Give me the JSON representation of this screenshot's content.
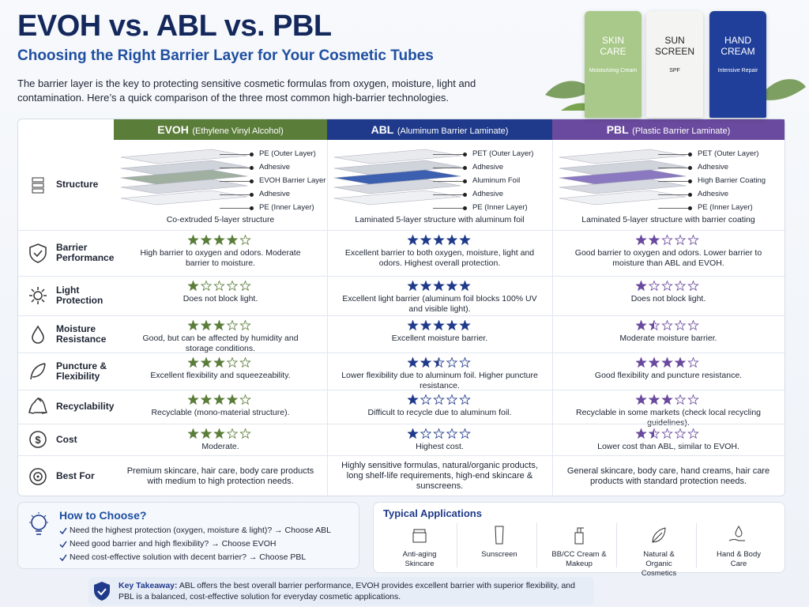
{
  "header": {
    "title": "EVOH vs. ABL vs. PBL",
    "subtitle": "Choosing the Right Barrier Layer for Your Cosmetic Tubes",
    "intro": "The barrier layer is the key to protecting sensitive cosmetic formulas from oxygen, moisture, light and contamination. Here’s a quick comparison of the three most common high-barrier technologies."
  },
  "products": [
    {
      "name": "SKIN CARE",
      "sub": "Moisturizing Cream",
      "color": "#a9c98a"
    },
    {
      "name": "SUN SCREEN",
      "sub": "SPF",
      "color": "#f4f4f2"
    },
    {
      "name": "HAND CREAM",
      "sub": "Intensive Repair",
      "color": "#1f3f9a"
    }
  ],
  "table": {
    "columns": [
      {
        "name": "EVOH",
        "full": "(Ethylene Vinyl Alcohol)",
        "color": "#5b7d3a"
      },
      {
        "name": "ABL",
        "full": "(Aluminum Barrier Laminate)",
        "color": "#1f3a8a"
      },
      {
        "name": "PBL",
        "full": "(Plastic Barrier Laminate)",
        "color": "#6a4a9e"
      }
    ],
    "structure": {
      "label": "Structure",
      "cells": [
        {
          "layers": [
            "PE (Outer Layer)",
            "Adhesive",
            "EVOH Barrier Layer",
            "Adhesive",
            "PE (Inner Layer)"
          ],
          "caption": "Co-extruded 5-layer structure"
        },
        {
          "layers": [
            "PET (Outer Layer)",
            "Adhesive",
            "Aluminum Foil",
            "Adhesive",
            "PE (Inner Layer)"
          ],
          "caption": "Laminated 5-layer structure with aluminum foil"
        },
        {
          "layers": [
            "PET (Outer Layer)",
            "Adhesive",
            "High Barrier Coating",
            "Adhesive",
            "PE (Inner Layer)"
          ],
          "caption": "Laminated 5-layer structure with barrier coating"
        }
      ]
    },
    "rows": [
      {
        "label": "Barrier Performance",
        "cells": [
          {
            "rating": 4,
            "text": "High barrier to oxygen and odors. Moderate barrier to moisture."
          },
          {
            "rating": 5,
            "text": "Excellent barrier to both oxygen, moisture, light and odors. Highest overall protection."
          },
          {
            "rating": 2,
            "text": "Good barrier to oxygen and odors. Lower barrier to moisture than ABL and EVOH."
          }
        ]
      },
      {
        "label": "Light Protection",
        "cells": [
          {
            "rating": 1,
            "text": "Does not block light."
          },
          {
            "rating": 5,
            "text": "Excellent light barrier (aluminum foil blocks 100% UV and visible light)."
          },
          {
            "rating": 1,
            "text": "Does not block light."
          }
        ]
      },
      {
        "label": "Moisture Resistance",
        "cells": [
          {
            "rating": 3,
            "text": "Good, but can be affected by humidity and storage conditions."
          },
          {
            "rating": 5,
            "text": "Excellent moisture barrier."
          },
          {
            "rating": 1.5,
            "text": "Moderate moisture barrier."
          }
        ]
      },
      {
        "label": "Puncture & Flexibility",
        "cells": [
          {
            "rating": 3,
            "text": "Excellent flexibility and squeezeability."
          },
          {
            "rating": 2.5,
            "text": "Lower flexibility due to aluminum foil. Higher puncture resistance."
          },
          {
            "rating": 4,
            "text": "Good flexibility and puncture resistance."
          }
        ]
      },
      {
        "label": "Recyclability",
        "cells": [
          {
            "rating": 4,
            "text": "Recyclable (mono-material structure)."
          },
          {
            "rating": 1,
            "text": "Difficult to recycle due to aluminum foil."
          },
          {
            "rating": 3,
            "text": "Recyclable in some markets (check local recycling guidelines)."
          }
        ]
      },
      {
        "label": "Cost",
        "cells": [
          {
            "rating": 3,
            "text": "Moderate."
          },
          {
            "rating": 1,
            "text": "Highest cost."
          },
          {
            "rating": 1.5,
            "text": "Lower cost than ABL, similar to EVOH."
          }
        ]
      },
      {
        "label": "Best For",
        "cells": [
          {
            "text": "Premium skincare, hair care, body care products with medium to high protection needs."
          },
          {
            "text": "Highly sensitive formulas, natural/organic products, long shelf-life requirements, high-end skincare & sunscreens."
          },
          {
            "text": "General skincare, body care, hand creams, hair care products with standard protection needs."
          }
        ]
      }
    ]
  },
  "how_to_choose": {
    "title": "How to Choose?",
    "items": [
      "Need the highest protection (oxygen, moisture & light)? → Choose ABL",
      "Need good barrier and high flexibility? → Choose EVOH",
      "Need cost-effective solution with decent barrier? → Choose PBL"
    ]
  },
  "applications": {
    "title": "Typical Applications",
    "items": [
      "Anti-aging Skincare",
      "Sunscreen",
      "BB/CC Cream & Makeup",
      "Natural & Organic Cosmetics",
      "Hand & Body Care"
    ]
  },
  "takeaway": {
    "label": "Key Takeaway:",
    "text": "ABL offers the best overall barrier performance, EVOH provides excellent barrier with superior flexibility, and PBL is a balanced, cost-effective solution for everyday cosmetic applications."
  }
}
